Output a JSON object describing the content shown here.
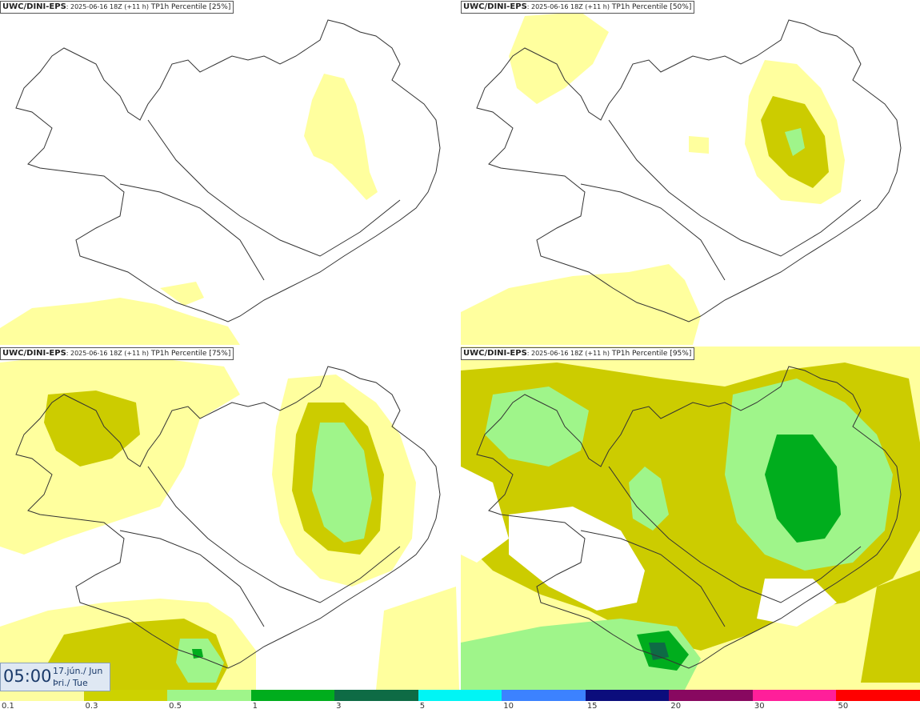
{
  "panels": [
    {
      "model": "UWC/DINI-EPS",
      "run": ": 2025-06-16 18Z (+11 h)",
      "field": " TP1h Percentile [25%]"
    },
    {
      "model": "UWC/DINI-EPS",
      "run": ": 2025-06-16 18Z (+11 h)",
      "field": " TP1h Percentile [50%]"
    },
    {
      "model": "UWC/DINI-EPS",
      "run": ": 2025-06-16 18Z (+11 h)",
      "field": " TP1h Percentile [75%]"
    },
    {
      "model": "UWC/DINI-EPS",
      "run": ": 2025-06-16 18Z (+11 h)",
      "field": " TP1h Percentile [95%]"
    }
  ],
  "valid_time": {
    "clock": "05:00",
    "date_line1": "17.jún./ Jun",
    "date_line2": "Þri./ Tue"
  },
  "legend": {
    "labels": [
      "0.1",
      "0.3",
      "0.5",
      "1",
      "3",
      "5",
      "10",
      "15",
      "20",
      "30",
      "50"
    ],
    "colors": [
      "#fdfda0",
      "#cdd200",
      "#9ff58a",
      "#00ad1d",
      "#0e6b45",
      "#00f5f5",
      "#3c82ff",
      "#0b0d7c",
      "#880860",
      "#ff1f9a",
      "#ff0000"
    ]
  },
  "colors": {
    "light_yellow": "#ffff9e",
    "olive": "#cccc00",
    "light_green": "#9ff58a",
    "green": "#00ad1d",
    "dark_green": "#0e6b45",
    "coast": "#333333"
  }
}
